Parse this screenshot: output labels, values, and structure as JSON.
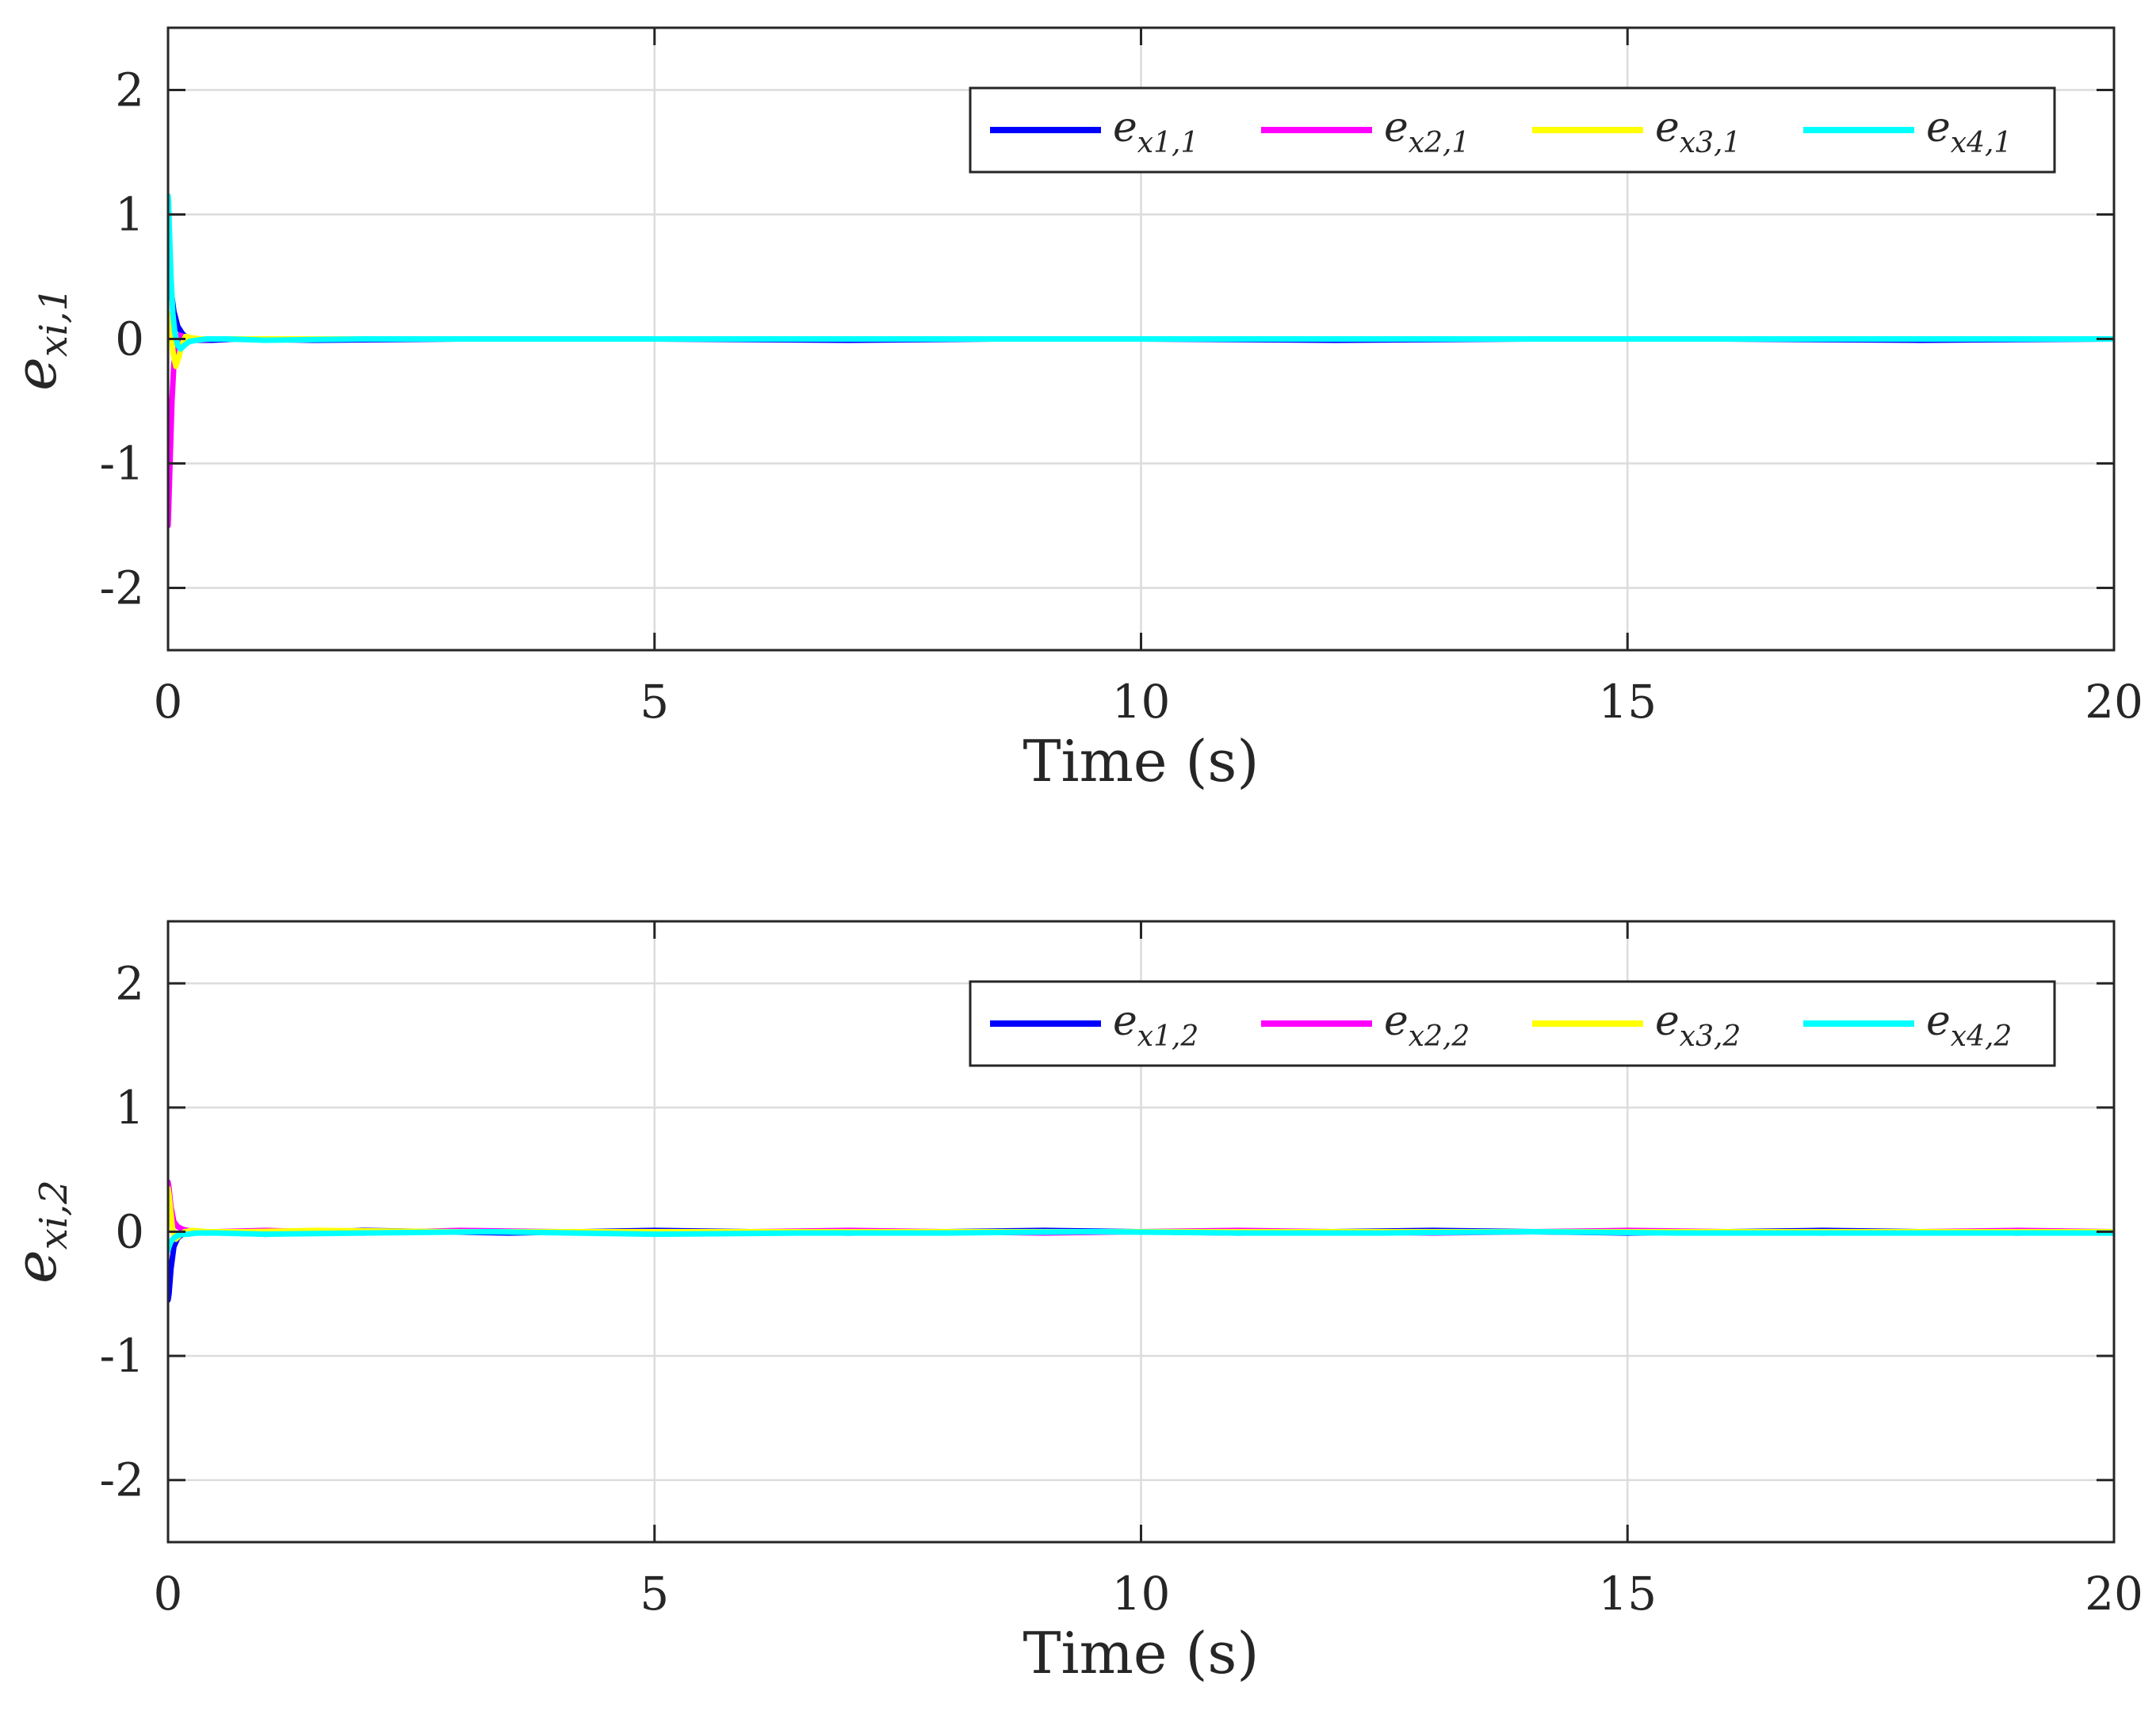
{
  "chart_data": [
    {
      "type": "line",
      "xlabel": "Time (s)",
      "ylabel": "e",
      "ylabel_sub": "xi,1",
      "xlim": [
        0,
        20
      ],
      "ylim": [
        -2.5,
        2.5
      ],
      "xticks": [
        "0",
        "5",
        "10",
        "15",
        "20"
      ],
      "yticks": [
        "2",
        "1",
        "0",
        "-1",
        "-2"
      ],
      "grid": true,
      "legend_position": "top-right",
      "series": [
        {
          "name": "e",
          "sub": "x1,1",
          "color": "#0000ff",
          "x": [
            0,
            0.01,
            0.03,
            0.06,
            0.1,
            0.15,
            0.2,
            0.3,
            0.45,
            0.7,
            1.5,
            3,
            5,
            7,
            8.5,
            10,
            12,
            14,
            16,
            18,
            20
          ],
          "y": [
            0.75,
            0.6,
            0.4,
            0.22,
            0.1,
            0.04,
            0.01,
            -0.01,
            -0.01,
            0.0,
            -0.01,
            0.0,
            0.0,
            -0.01,
            0.0,
            0.0,
            -0.01,
            0.0,
            0.0,
            -0.01,
            0.0
          ]
        },
        {
          "name": "e",
          "sub": "x2,1",
          "color": "#ff00ff",
          "x": [
            0,
            0.005,
            0.02,
            0.04,
            0.06,
            0.09,
            0.12,
            0.16,
            0.22,
            0.3,
            0.45,
            0.7,
            1.5,
            3,
            5,
            8,
            11,
            14,
            17,
            20
          ],
          "y": [
            -1.5,
            -1.4,
            -1.0,
            -0.5,
            -0.2,
            -0.05,
            0.03,
            0.02,
            0.0,
            -0.01,
            0.0,
            0.0,
            0.0,
            0.0,
            0.0,
            0.0,
            0.0,
            0.0,
            0.0,
            0.0
          ]
        },
        {
          "name": "e",
          "sub": "x3,1",
          "color": "#ffff00",
          "x": [
            0,
            0.01,
            0.03,
            0.05,
            0.08,
            0.11,
            0.14,
            0.18,
            0.24,
            0.32,
            0.5,
            1,
            2,
            4,
            6,
            9,
            12,
            15,
            18,
            20
          ],
          "y": [
            0.0,
            0.2,
            0.1,
            -0.1,
            -0.22,
            -0.15,
            -0.05,
            0.02,
            0.01,
            0.0,
            0.0,
            0.0,
            0.0,
            0.0,
            0.0,
            0.0,
            0.0,
            0.0,
            0.0,
            0.0
          ]
        },
        {
          "name": "e",
          "sub": "x4,1",
          "color": "#00ffff",
          "x": [
            0,
            0.005,
            0.015,
            0.03,
            0.05,
            0.07,
            0.1,
            0.13,
            0.17,
            0.22,
            0.3,
            0.4,
            0.6,
            1,
            2,
            4,
            6,
            8,
            10,
            12,
            14,
            16,
            18,
            20
          ],
          "y": [
            1.15,
            1.1,
            0.85,
            0.5,
            0.2,
            0.05,
            -0.05,
            -0.08,
            -0.05,
            -0.02,
            -0.01,
            0.0,
            0.0,
            -0.01,
            0.0,
            0.0,
            0.0,
            0.0,
            0.0,
            0.0,
            0.0,
            0.0,
            0.0,
            0.0
          ]
        }
      ]
    },
    {
      "type": "line",
      "xlabel": "Time (s)",
      "ylabel": "e",
      "ylabel_sub": "xi,2",
      "xlim": [
        0,
        20
      ],
      "ylim": [
        -2.5,
        2.5
      ],
      "xticks": [
        "0",
        "5",
        "10",
        "15",
        "20"
      ],
      "yticks": [
        "2",
        "1",
        "0",
        "-1",
        "-2"
      ],
      "grid": true,
      "legend_position": "top-right",
      "series": [
        {
          "name": "e",
          "sub": "x1,2",
          "color": "#0000ff",
          "x": [
            0,
            0.01,
            0.03,
            0.06,
            0.1,
            0.15,
            0.2,
            0.3,
            0.5,
            1,
            2,
            3.5,
            5,
            7,
            9,
            11,
            13,
            15,
            17,
            19,
            20
          ],
          "y": [
            -0.55,
            -0.5,
            -0.3,
            -0.12,
            -0.05,
            -0.02,
            -0.01,
            0.0,
            0.0,
            -0.02,
            0.01,
            -0.01,
            0.01,
            -0.01,
            0.01,
            -0.01,
            0.01,
            -0.01,
            0.01,
            -0.01,
            0.0
          ]
        },
        {
          "name": "e",
          "sub": "x2,2",
          "color": "#ff00ff",
          "x": [
            0,
            0.01,
            0.03,
            0.06,
            0.1,
            0.15,
            0.2,
            0.3,
            0.5,
            1,
            2,
            3,
            5,
            7,
            9,
            11,
            13,
            15,
            17,
            19,
            20
          ],
          "y": [
            0.4,
            0.35,
            0.2,
            0.08,
            0.04,
            0.02,
            0.01,
            0.0,
            0.0,
            0.01,
            -0.01,
            0.01,
            -0.01,
            0.01,
            -0.01,
            0.01,
            -0.01,
            0.01,
            -0.01,
            0.01,
            0.0
          ]
        },
        {
          "name": "e",
          "sub": "x3,2",
          "color": "#ffff00",
          "x": [
            0,
            0.01,
            0.03,
            0.05,
            0.08,
            0.12,
            0.17,
            0.25,
            0.4,
            0.8,
            1.5,
            3,
            5,
            7,
            10,
            13,
            16,
            20
          ],
          "y": [
            0.35,
            0.3,
            0.15,
            0.0,
            -0.06,
            -0.03,
            0.0,
            0.01,
            0.0,
            0.0,
            0.01,
            0.0,
            0.0,
            0.0,
            0.0,
            0.0,
            0.0,
            0.0
          ]
        },
        {
          "name": "e",
          "sub": "x4,2",
          "color": "#00ffff",
          "x": [
            0,
            0.01,
            0.03,
            0.06,
            0.1,
            0.15,
            0.2,
            0.3,
            0.5,
            1,
            2,
            3.3,
            5,
            6.5,
            8,
            9.5,
            11,
            12.5,
            14,
            15.5,
            17,
            18.5,
            20
          ],
          "y": [
            -0.15,
            -0.12,
            -0.08,
            -0.05,
            -0.03,
            -0.02,
            -0.02,
            -0.01,
            -0.01,
            -0.02,
            -0.01,
            0.0,
            -0.02,
            -0.01,
            -0.01,
            0.0,
            -0.01,
            -0.01,
            0.0,
            -0.01,
            -0.01,
            -0.01,
            -0.01
          ]
        }
      ]
    }
  ]
}
